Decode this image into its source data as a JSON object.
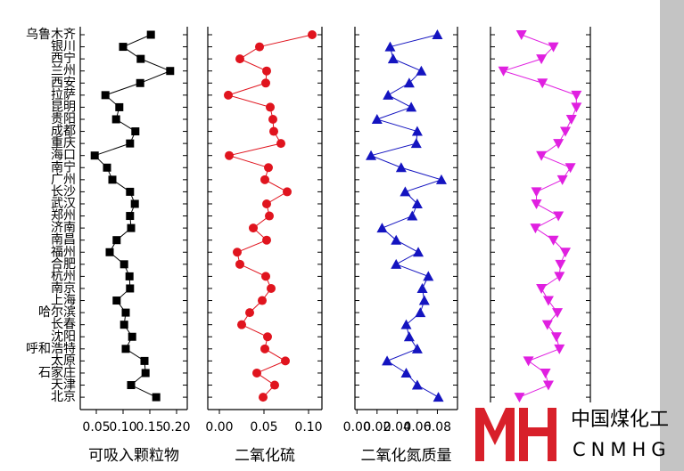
{
  "chart_data": {
    "type": "line",
    "categories": [
      "乌鲁木齐",
      "银川",
      "西宁",
      "兰州",
      "西安",
      "拉萨",
      "昆明",
      "贵阳",
      "成都",
      "重庆",
      "海口",
      "南宁",
      "广州",
      "长沙",
      "武汉",
      "郑州",
      "济南",
      "南昌",
      "福州",
      "合肥",
      "杭州",
      "南京",
      "上海",
      "哈尔滨",
      "长春",
      "沈阳",
      "呼和浩特",
      "太原",
      "石家庄",
      "天津",
      "北京"
    ],
    "series": [
      {
        "name": "可吸入颗粒物",
        "color": "#000000",
        "marker": "square",
        "xlim": [
          0.02,
          0.22
        ],
        "xticks": [
          0.05,
          {
            "value": 0.1,
            "label": "0.10"
          },
          0.15,
          {
            "value": 0.2,
            "label": "0.20"
          }
        ],
        "values": [
          0.152,
          0.1,
          0.133,
          0.188,
          0.132,
          0.067,
          0.093,
          0.087,
          0.123,
          0.113,
          0.047,
          0.07,
          0.08,
          0.113,
          0.122,
          0.113,
          0.115,
          0.088,
          0.075,
          0.102,
          0.112,
          0.113,
          0.088,
          0.105,
          0.102,
          0.117,
          0.105,
          0.14,
          0.142,
          0.115,
          0.162
        ]
      },
      {
        "name": "二氧化硫",
        "color": "#e0141e",
        "marker": "circle",
        "xlim": [
          -0.013,
          0.115
        ],
        "xticks": [
          {
            "value": 0,
            "label": "0.00"
          },
          0.05,
          {
            "value": 0.1,
            "label": "0.10"
          }
        ],
        "values": [
          0.104,
          0.045,
          0.023,
          0.053,
          0.052,
          0.01,
          0.057,
          0.06,
          0.061,
          0.069,
          0.011,
          0.055,
          0.051,
          0.076,
          0.053,
          0.056,
          0.038,
          0.053,
          0.02,
          0.023,
          0.052,
          0.058,
          0.048,
          0.034,
          0.025,
          0.054,
          0.051,
          0.074,
          0.042,
          0.062,
          0.049
        ]
      },
      {
        "name": "二氧化氮质量",
        "color": "#1414c0",
        "marker": "triangle-up",
        "xlim": [
          -0.002,
          0.1
        ],
        "xticks": [
          {
            "value": 0,
            "label": "0.00"
          },
          0.02,
          0.04,
          0.06,
          0.08
        ],
        "values": [
          0.08,
          0.033,
          0.036,
          0.064,
          0.052,
          0.031,
          0.054,
          0.02,
          0.06,
          0.059,
          0.014,
          0.044,
          0.084,
          0.048,
          0.06,
          0.055,
          0.025,
          0.039,
          0.061,
          0.039,
          0.071,
          0.065,
          0.067,
          0.063,
          0.049,
          0.052,
          0.06,
          0.03,
          0.049,
          0.06,
          0.081
        ]
      },
      {
        "color": "#e020e0",
        "marker": "triangle-down",
        "xlim": [
          0,
          1
        ],
        "values": [
          0.31,
          0.63,
          0.51,
          0.13,
          0.52,
          0.86,
          0.86,
          0.81,
          0.75,
          0.68,
          0.51,
          0.8,
          0.72,
          0.46,
          0.46,
          0.68,
          0.45,
          0.63,
          0.75,
          0.7,
          0.69,
          0.51,
          0.58,
          0.67,
          0.57,
          0.66,
          0.69,
          0.38,
          0.55,
          0.58,
          0.29
        ]
      }
    ]
  },
  "watermark": {
    "cn": "中国煤化工",
    "en": "CNMHG"
  }
}
